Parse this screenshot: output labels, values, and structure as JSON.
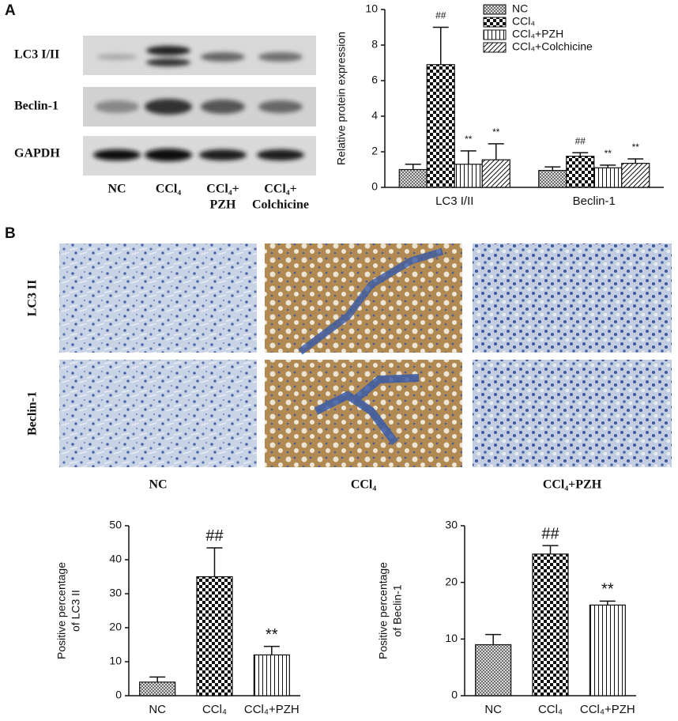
{
  "panel_labels": [
    "A",
    "B"
  ],
  "blot": {
    "row_labels": [
      "LC3 I/II",
      "Beclin-1",
      "GAPDH"
    ],
    "lane_labels": [
      [
        "NC"
      ],
      [
        "CCl₄"
      ],
      [
        "CCl₄+",
        "PZH"
      ],
      [
        "CCl₄+",
        "Colchicine"
      ]
    ]
  },
  "ihc": {
    "row_labels": [
      "LC3 II",
      "Beclin-1"
    ],
    "column_labels": [
      "NC",
      "CCl₄",
      "CCl₄+PZH"
    ]
  },
  "chart_data": [
    {
      "type": "bar",
      "ylabel": [
        "Relative protein expression"
      ],
      "categories": [
        "LC3 I/II",
        "Beclin-1"
      ],
      "series": [
        {
          "name": "NC",
          "pattern": "crosshatch",
          "values": [
            1.0,
            0.95
          ],
          "errors": [
            0.3,
            0.2
          ],
          "annotations": [
            null,
            null
          ]
        },
        {
          "name": "CCl₄",
          "pattern": "checker",
          "values": [
            6.9,
            1.75
          ],
          "errors": [
            2.1,
            0.2
          ],
          "annotations": [
            "##",
            "##"
          ]
        },
        {
          "name": "CCl₄+PZH",
          "pattern": "vlines",
          "values": [
            1.3,
            1.1
          ],
          "errors": [
            0.75,
            0.15
          ],
          "annotations": [
            "**",
            "**"
          ]
        },
        {
          "name": "CCl₄+Colchicine",
          "pattern": "diag",
          "values": [
            1.55,
            1.35
          ],
          "errors": [
            0.9,
            0.25
          ],
          "annotations": [
            "**",
            "**"
          ]
        }
      ],
      "ylim": [
        0,
        10
      ],
      "yticks": [
        0,
        2,
        4,
        6,
        8,
        10
      ],
      "legend": "top-right"
    },
    {
      "type": "bar",
      "ylabel": [
        "Positive percentage",
        "of LC3 II"
      ],
      "categories": [
        "NC",
        "CCl₄",
        "CCl₄+PZH"
      ],
      "values": [
        4,
        35,
        12
      ],
      "errors": [
        1.5,
        8.5,
        2.5
      ],
      "annotations": [
        null,
        "##",
        "**"
      ],
      "patterns": [
        "crosshatch",
        "checker",
        "vlines"
      ],
      "ylim": [
        0,
        50
      ],
      "yticks": [
        0,
        10,
        20,
        30,
        40,
        50
      ]
    },
    {
      "type": "bar",
      "ylabel": [
        "Positive percentage",
        "of Beclin-1"
      ],
      "categories": [
        "NC",
        "CCl₄",
        "CCl₄+PZH"
      ],
      "values": [
        9,
        25,
        16
      ],
      "errors": [
        1.8,
        1.5,
        0.7
      ],
      "annotations": [
        null,
        "##",
        "**"
      ],
      "patterns": [
        "crosshatch",
        "checker",
        "vlines"
      ],
      "ylim": [
        0,
        30
      ],
      "yticks": [
        0,
        10,
        20,
        30
      ]
    }
  ]
}
